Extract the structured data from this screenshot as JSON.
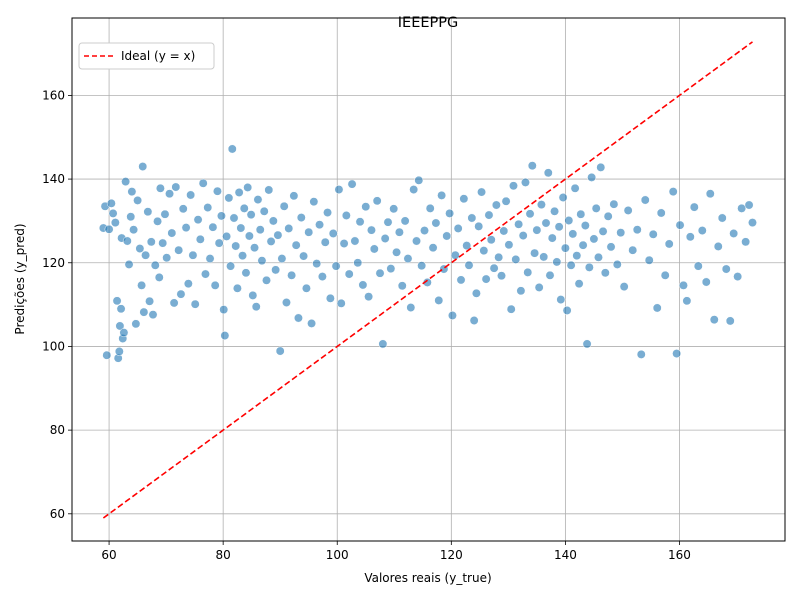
{
  "chart_data": {
    "type": "scatter",
    "title": "IEEEPPG",
    "xlabel": "Valores reais (y_true)",
    "ylabel": "Predições (y_pred)",
    "xlim": [
      53.5,
      178.5
    ],
    "ylim": [
      53.5,
      178.5
    ],
    "xticks": [
      60,
      80,
      100,
      120,
      140,
      160
    ],
    "yticks": [
      60,
      80,
      100,
      120,
      140,
      160
    ],
    "grid": true,
    "legend_position": "top-left",
    "series": [
      {
        "kind": "points",
        "color": "#1f77b4",
        "points": [
          [
            59.0,
            128.3
          ],
          [
            59.3,
            133.5
          ],
          [
            59.6,
            97.9
          ],
          [
            60.0,
            128.0
          ],
          [
            60.4,
            134.2
          ],
          [
            60.7,
            131.8
          ],
          [
            61.1,
            129.6
          ],
          [
            61.4,
            110.9
          ],
          [
            61.6,
            97.2
          ],
          [
            61.8,
            98.8
          ],
          [
            61.9,
            104.9
          ],
          [
            62.1,
            109.0
          ],
          [
            62.2,
            125.9
          ],
          [
            62.4,
            101.9
          ],
          [
            62.6,
            103.3
          ],
          [
            62.9,
            139.4
          ],
          [
            63.2,
            125.2
          ],
          [
            63.5,
            119.6
          ],
          [
            63.8,
            131.0
          ],
          [
            64.0,
            137.0
          ],
          [
            64.3,
            127.9
          ],
          [
            64.7,
            105.4
          ],
          [
            65.0,
            134.9
          ],
          [
            65.4,
            123.4
          ],
          [
            65.7,
            114.6
          ],
          [
            65.9,
            143.0
          ],
          [
            66.1,
            108.2
          ],
          [
            66.4,
            121.8
          ],
          [
            66.8,
            132.2
          ],
          [
            67.1,
            110.8
          ],
          [
            67.4,
            125.0
          ],
          [
            67.7,
            107.6
          ],
          [
            68.1,
            119.4
          ],
          [
            68.5,
            129.9
          ],
          [
            68.8,
            116.5
          ],
          [
            69.0,
            137.8
          ],
          [
            69.4,
            124.7
          ],
          [
            69.8,
            131.6
          ],
          [
            70.1,
            121.2
          ],
          [
            70.6,
            136.5
          ],
          [
            71.0,
            127.1
          ],
          [
            71.4,
            110.4
          ],
          [
            71.7,
            138.1
          ],
          [
            72.2,
            123.0
          ],
          [
            72.6,
            112.5
          ],
          [
            73.0,
            132.9
          ],
          [
            73.5,
            128.4
          ],
          [
            73.9,
            115.0
          ],
          [
            74.3,
            136.2
          ],
          [
            74.7,
            121.8
          ],
          [
            75.1,
            110.1
          ],
          [
            75.6,
            130.3
          ],
          [
            76.0,
            125.6
          ],
          [
            76.5,
            139.0
          ],
          [
            76.9,
            117.3
          ],
          [
            77.3,
            133.2
          ],
          [
            77.7,
            121.0
          ],
          [
            78.2,
            128.5
          ],
          [
            78.6,
            114.6
          ],
          [
            79.0,
            137.1
          ],
          [
            79.3,
            124.7
          ],
          [
            79.7,
            131.2
          ],
          [
            80.1,
            108.8
          ],
          [
            80.3,
            102.6
          ],
          [
            80.6,
            126.3
          ],
          [
            81.0,
            135.5
          ],
          [
            81.3,
            119.2
          ],
          [
            81.6,
            147.2
          ],
          [
            81.9,
            130.7
          ],
          [
            82.2,
            124.0
          ],
          [
            82.5,
            113.9
          ],
          [
            82.8,
            136.8
          ],
          [
            83.1,
            128.3
          ],
          [
            83.4,
            121.7
          ],
          [
            83.7,
            133.0
          ],
          [
            84.0,
            117.6
          ],
          [
            84.3,
            138.0
          ],
          [
            84.6,
            126.4
          ],
          [
            84.9,
            131.5
          ],
          [
            85.2,
            112.2
          ],
          [
            85.5,
            123.6
          ],
          [
            85.8,
            109.5
          ],
          [
            86.1,
            135.1
          ],
          [
            86.5,
            127.9
          ],
          [
            86.8,
            120.5
          ],
          [
            87.2,
            132.3
          ],
          [
            87.6,
            115.8
          ],
          [
            88.0,
            137.4
          ],
          [
            88.4,
            125.1
          ],
          [
            88.8,
            130.0
          ],
          [
            89.2,
            118.3
          ],
          [
            89.6,
            126.6
          ],
          [
            90.0,
            98.9
          ],
          [
            90.3,
            121.0
          ],
          [
            90.7,
            133.5
          ],
          [
            91.1,
            110.5
          ],
          [
            91.5,
            128.2
          ],
          [
            92.0,
            117.0
          ],
          [
            92.4,
            136.0
          ],
          [
            92.8,
            124.2
          ],
          [
            93.2,
            106.8
          ],
          [
            93.7,
            130.8
          ],
          [
            94.1,
            121.6
          ],
          [
            94.6,
            113.9
          ],
          [
            95.0,
            127.3
          ],
          [
            95.5,
            105.5
          ],
          [
            95.9,
            134.6
          ],
          [
            96.4,
            119.8
          ],
          [
            96.9,
            129.1
          ],
          [
            97.4,
            116.7
          ],
          [
            97.9,
            124.9
          ],
          [
            98.3,
            132.0
          ],
          [
            98.8,
            111.5
          ],
          [
            99.3,
            127.0
          ],
          [
            99.8,
            119.2
          ],
          [
            100.3,
            137.5
          ],
          [
            100.7,
            110.3
          ],
          [
            101.2,
            124.6
          ],
          [
            101.6,
            131.3
          ],
          [
            102.1,
            117.3
          ],
          [
            102.6,
            138.8
          ],
          [
            103.1,
            125.2
          ],
          [
            103.6,
            120.0
          ],
          [
            104.0,
            129.8
          ],
          [
            104.5,
            114.7
          ],
          [
            105.0,
            133.4
          ],
          [
            105.5,
            111.9
          ],
          [
            106.0,
            127.8
          ],
          [
            106.5,
            123.3
          ],
          [
            107.0,
            134.8
          ],
          [
            107.5,
            117.5
          ],
          [
            108.0,
            100.6
          ],
          [
            108.4,
            125.8
          ],
          [
            108.9,
            129.7
          ],
          [
            109.4,
            118.6
          ],
          [
            109.9,
            132.9
          ],
          [
            110.4,
            122.5
          ],
          [
            110.9,
            127.3
          ],
          [
            111.4,
            114.5
          ],
          [
            111.9,
            130.0
          ],
          [
            112.4,
            121.0
          ],
          [
            112.9,
            109.3
          ],
          [
            113.4,
            137.5
          ],
          [
            113.9,
            125.2
          ],
          [
            114.3,
            139.7
          ],
          [
            114.8,
            119.3
          ],
          [
            115.3,
            127.7
          ],
          [
            115.8,
            115.3
          ],
          [
            116.3,
            133.0
          ],
          [
            116.8,
            123.6
          ],
          [
            117.3,
            129.5
          ],
          [
            117.8,
            111.0
          ],
          [
            118.3,
            136.1
          ],
          [
            118.7,
            118.5
          ],
          [
            119.2,
            126.4
          ],
          [
            119.7,
            131.8
          ],
          [
            120.2,
            107.4
          ],
          [
            120.7,
            121.8
          ],
          [
            121.2,
            128.2
          ],
          [
            121.7,
            115.9
          ],
          [
            122.2,
            135.3
          ],
          [
            122.7,
            124.1
          ],
          [
            123.1,
            119.4
          ],
          [
            123.6,
            130.7
          ],
          [
            124.0,
            106.2
          ],
          [
            124.4,
            112.7
          ],
          [
            124.8,
            128.7
          ],
          [
            125.3,
            136.9
          ],
          [
            125.7,
            122.9
          ],
          [
            126.1,
            116.1
          ],
          [
            126.6,
            131.4
          ],
          [
            127.0,
            125.5
          ],
          [
            127.5,
            118.7
          ],
          [
            127.9,
            133.8
          ],
          [
            128.3,
            121.3
          ],
          [
            128.8,
            116.9
          ],
          [
            129.2,
            127.6
          ],
          [
            129.6,
            134.7
          ],
          [
            130.1,
            124.3
          ],
          [
            130.5,
            108.9
          ],
          [
            130.9,
            138.4
          ],
          [
            131.3,
            120.8
          ],
          [
            131.8,
            129.2
          ],
          [
            132.2,
            113.3
          ],
          [
            132.6,
            126.5
          ],
          [
            133.0,
            139.2
          ],
          [
            133.4,
            117.7
          ],
          [
            133.8,
            131.7
          ],
          [
            134.2,
            143.2
          ],
          [
            134.6,
            122.3
          ],
          [
            135.0,
            127.8
          ],
          [
            135.4,
            114.1
          ],
          [
            135.8,
            133.9
          ],
          [
            136.2,
            121.4
          ],
          [
            136.6,
            129.5
          ],
          [
            137.0,
            141.5
          ],
          [
            137.3,
            117.0
          ],
          [
            137.7,
            125.9
          ],
          [
            138.1,
            132.3
          ],
          [
            138.5,
            120.2
          ],
          [
            138.9,
            128.6
          ],
          [
            139.2,
            111.2
          ],
          [
            139.6,
            135.6
          ],
          [
            140.0,
            123.5
          ],
          [
            140.3,
            108.6
          ],
          [
            140.6,
            130.1
          ],
          [
            141.0,
            119.4
          ],
          [
            141.3,
            126.9
          ],
          [
            141.7,
            137.8
          ],
          [
            142.0,
            121.7
          ],
          [
            142.4,
            115.0
          ],
          [
            142.7,
            131.6
          ],
          [
            143.1,
            124.2
          ],
          [
            143.5,
            128.9
          ],
          [
            143.8,
            100.6
          ],
          [
            144.2,
            118.9
          ],
          [
            144.6,
            140.4
          ],
          [
            145.0,
            125.7
          ],
          [
            145.4,
            133.0
          ],
          [
            145.8,
            121.3
          ],
          [
            146.2,
            142.8
          ],
          [
            146.6,
            127.5
          ],
          [
            147.0,
            117.6
          ],
          [
            147.5,
            131.1
          ],
          [
            148.0,
            123.8
          ],
          [
            148.5,
            134.0
          ],
          [
            149.1,
            119.6
          ],
          [
            149.7,
            127.2
          ],
          [
            150.3,
            114.3
          ],
          [
            151.0,
            132.5
          ],
          [
            151.8,
            123.0
          ],
          [
            152.6,
            127.9
          ],
          [
            153.3,
            98.1
          ],
          [
            154.0,
            135.0
          ],
          [
            154.7,
            120.6
          ],
          [
            155.4,
            126.8
          ],
          [
            156.1,
            109.2
          ],
          [
            156.8,
            131.9
          ],
          [
            157.5,
            117.0
          ],
          [
            158.2,
            124.5
          ],
          [
            158.9,
            137.0
          ],
          [
            159.5,
            98.3
          ],
          [
            160.1,
            129.0
          ],
          [
            160.7,
            114.6
          ],
          [
            161.3,
            110.9
          ],
          [
            161.9,
            126.2
          ],
          [
            162.6,
            133.3
          ],
          [
            163.3,
            119.2
          ],
          [
            164.0,
            127.7
          ],
          [
            164.7,
            115.4
          ],
          [
            165.4,
            136.5
          ],
          [
            166.1,
            106.4
          ],
          [
            166.8,
            123.9
          ],
          [
            167.5,
            130.7
          ],
          [
            168.2,
            118.5
          ],
          [
            168.9,
            106.1
          ],
          [
            169.5,
            127.0
          ],
          [
            170.2,
            116.7
          ],
          [
            170.9,
            133.0
          ],
          [
            171.6,
            125.0
          ],
          [
            172.2,
            133.8
          ],
          [
            172.8,
            129.6
          ]
        ]
      },
      {
        "kind": "line",
        "name": "Ideal (y = x)",
        "color": "#ff0000",
        "style": "dashed",
        "x": [
          59.0,
          172.8
        ],
        "y": [
          59.0,
          172.8
        ]
      }
    ]
  }
}
